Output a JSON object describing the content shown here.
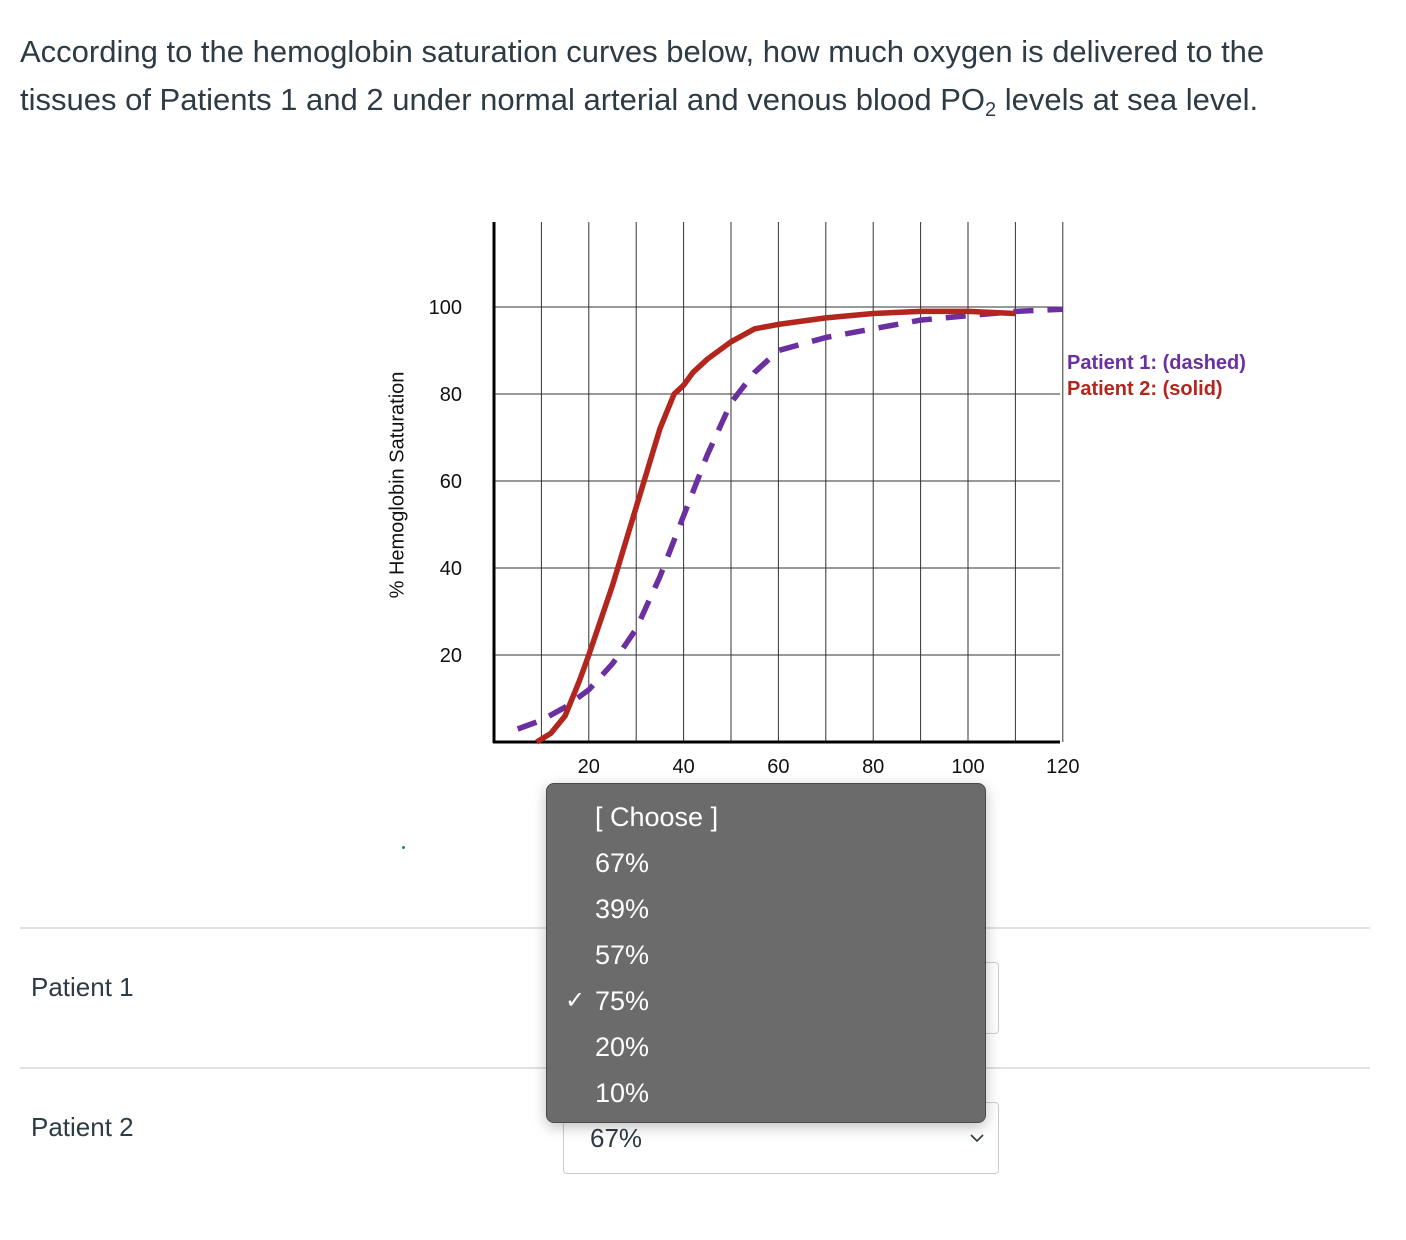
{
  "question": {
    "text_before": "According to the hemoglobin saturation curves below, how much oxygen is delivered to the tissues of Patients 1 and 2 under normal arterial and venous blood  PO",
    "subscript": "2",
    "text_after": " levels at sea level."
  },
  "chart_data": {
    "type": "line",
    "ylabel": "% Hemoglobin Saturation",
    "x_ticks": [
      "20",
      "40",
      "60",
      "80",
      "100",
      "120"
    ],
    "y_ticks": [
      "20",
      "40",
      "60",
      "80",
      "100"
    ],
    "xlim": [
      0,
      120
    ],
    "ylim": [
      0,
      100
    ],
    "grid": true,
    "legend_position": "right",
    "series": [
      {
        "name": "Patient 1: (dashed)",
        "color": "#6b2fa0",
        "style": "dashed",
        "x": [
          5,
          10,
          15,
          20,
          25,
          30,
          35,
          40,
          45,
          50,
          55,
          60,
          70,
          80,
          90,
          100,
          110,
          120
        ],
        "y": [
          3,
          5,
          8,
          12,
          18,
          26,
          38,
          52,
          66,
          78,
          85,
          90,
          93,
          95,
          97,
          98,
          99,
          99.5
        ]
      },
      {
        "name": "Patient 2: (solid)",
        "color": "#b2261e",
        "style": "solid",
        "x": [
          9,
          12,
          15,
          18,
          20,
          25,
          30,
          35,
          38,
          40,
          42,
          45,
          50,
          55,
          60,
          70,
          80,
          90,
          100,
          110
        ],
        "y": [
          0,
          2,
          6,
          14,
          20,
          36,
          54,
          72,
          80,
          82,
          85,
          88,
          92,
          95,
          96,
          97.5,
          98.5,
          99,
          99,
          98.5
        ]
      }
    ]
  },
  "rows": [
    {
      "label": "Patient 1",
      "selected": ""
    },
    {
      "label": "Patient 2",
      "selected": "67%"
    }
  ],
  "dropdown": {
    "options": [
      "[ Choose ]",
      "67%",
      "39%",
      "57%",
      "75%",
      "20%",
      "10%"
    ],
    "checked_option": "75%",
    "check_mark": "✓"
  }
}
